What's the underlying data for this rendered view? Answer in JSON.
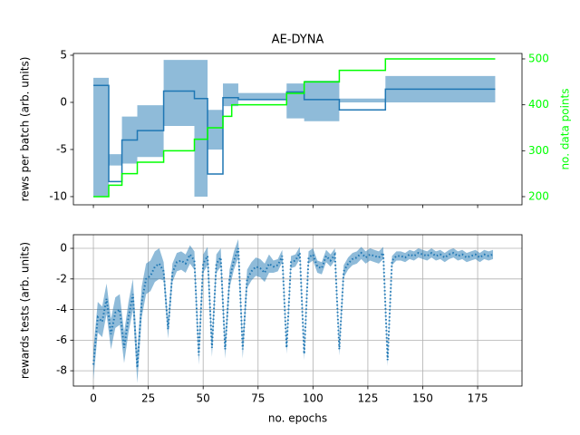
{
  "chart_data": [
    {
      "type": "line",
      "step": true,
      "title": "AE-DYNA",
      "ylabel": "rews per batch (arb. units)",
      "y2label": "no. data points",
      "y2color": "#00ff00",
      "xlim": [
        -9.1,
        195.2
      ],
      "xticks": [
        0,
        25,
        50,
        75,
        100,
        125,
        150,
        175
      ],
      "xtick_labels": false,
      "ylim": [
        -10.87,
        5.19
      ],
      "yticks": [
        -10,
        -5,
        0,
        5
      ],
      "y2lim": [
        182.2,
        511.8
      ],
      "y2ticks": [
        200,
        300,
        400,
        500
      ],
      "grid": false,
      "series": [
        {
          "color": "#1f77b4",
          "x": [
            0,
            7,
            13,
            20,
            32,
            46,
            52,
            59,
            66,
            88,
            96,
            112,
            133,
            183
          ],
          "values": [
            1.8,
            -8.4,
            -4,
            -3,
            1.2,
            0.4,
            -7.6,
            0.5,
            0.3,
            1.1,
            0.3,
            -0.8,
            1.4,
            1.4
          ],
          "lower": [
            1,
            -10,
            -5.5,
            -6.5,
            -5.8,
            -2.5,
            -10,
            -0.8,
            -0.4,
            0.3,
            -1.7,
            -2,
            0,
            0
          ],
          "upper": [
            2.6,
            -6.7,
            -1.5,
            -0.3,
            4.5,
            4.5,
            -5,
            2,
            1,
            2,
            2.3,
            0.4,
            2.8,
            2.8
          ]
        },
        {
          "color": "#00ff00",
          "axis": "y2",
          "x": [
            0,
            7,
            13,
            20,
            32,
            46,
            52,
            59,
            63,
            88,
            96,
            112,
            133,
            183
          ],
          "values": [
            200,
            225,
            250,
            275,
            300,
            325,
            350,
            375,
            400,
            425,
            450,
            475,
            500,
            500
          ]
        }
      ]
    },
    {
      "type": "line",
      "step": false,
      "ylabel": "rewards tests (arb. units)",
      "xlabel": "no. epochs",
      "xlim": [
        -9.1,
        195.2
      ],
      "xticks": [
        0,
        25,
        50,
        75,
        100,
        125,
        150,
        175
      ],
      "xtick_labels": true,
      "ylim": [
        -9.0,
        0.89
      ],
      "yticks": [
        -8,
        -6,
        -4,
        -2,
        0
      ],
      "grid": true,
      "series": [
        {
          "color": "#1f77b4",
          "linestyle": "dotted",
          "x": [
            0,
            2,
            4,
            6,
            8,
            10,
            12,
            14,
            16,
            18,
            20,
            22,
            24,
            26,
            28,
            30,
            32,
            34,
            36,
            38,
            40,
            42,
            44,
            46,
            48,
            50,
            52,
            54,
            56,
            58,
            60,
            62,
            64,
            66,
            68,
            70,
            72,
            74,
            76,
            78,
            80,
            82,
            84,
            86,
            88,
            90,
            92,
            94,
            96,
            98,
            100,
            102,
            104,
            106,
            108,
            110,
            112,
            114,
            116,
            118,
            120,
            122,
            124,
            126,
            128,
            130,
            132,
            134,
            136,
            138,
            140,
            142,
            144,
            146,
            148,
            150,
            152,
            154,
            156,
            158,
            160,
            162,
            164,
            166,
            168,
            170,
            172,
            174,
            176,
            178,
            180,
            182
          ],
          "values": [
            -7.6,
            -4.5,
            -4.8,
            -3.3,
            -5.6,
            -4.2,
            -4.0,
            -6.5,
            -4.5,
            -3.0,
            -7.8,
            -3.5,
            -2.0,
            -1.8,
            -1.2,
            -1.0,
            -1.5,
            -5.3,
            -1.6,
            -0.9,
            -0.8,
            -1.0,
            -0.4,
            -0.8,
            -7.0,
            -1.0,
            -0.5,
            -6.5,
            -1.0,
            -0.6,
            -6.6,
            -2.0,
            -0.8,
            0,
            -6.6,
            -2.0,
            -1.5,
            -1.2,
            -1.3,
            -1.6,
            -1.0,
            -1.2,
            -1.1,
            -0.5,
            -6.5,
            -0.9,
            -0.8,
            -0.3,
            -6.9,
            -0.6,
            -0.4,
            -1.2,
            -1.3,
            -0.5,
            -0.8,
            -0.4,
            -6.6,
            -1.5,
            -1.0,
            -0.7,
            -0.6,
            -0.3,
            -0.6,
            -0.4,
            -0.5,
            -0.6,
            -0.3,
            -7.3,
            -0.8,
            -0.5,
            -0.5,
            -0.6,
            -0.4,
            -0.5,
            -0.3,
            -0.4,
            -0.5,
            -0.3,
            -0.5,
            -0.4,
            -0.6,
            -0.4,
            -0.3,
            -0.5,
            -0.4,
            -0.6,
            -0.5,
            -0.4,
            -0.6,
            -0.4,
            -0.5,
            -0.4
          ],
          "upper": [
            -6.6,
            -3.5,
            -3.8,
            -2.3,
            -4.6,
            -3.2,
            -3.0,
            -5.5,
            -3.5,
            -2.0,
            -6.8,
            -2.5,
            -1.0,
            -0.8,
            -0.2,
            0,
            -0.9,
            -4.7,
            -1.0,
            -0.3,
            -0.2,
            -0.4,
            0.2,
            -0.2,
            -6.4,
            -0.4,
            0.1,
            -5.9,
            -0.4,
            0,
            -6.0,
            -1.4,
            -0.2,
            0.6,
            -6.0,
            -1.4,
            -0.9,
            -0.6,
            -0.7,
            -1.0,
            -0.4,
            -0.8,
            -0.7,
            -0.1,
            -6.1,
            -0.5,
            -0.4,
            0.1,
            -6.5,
            -0.2,
            0,
            -0.8,
            -0.9,
            -0.1,
            -0.4,
            0,
            -6.2,
            -1.1,
            -0.6,
            -0.3,
            -0.2,
            0.1,
            -0.2,
            0,
            -0.1,
            -0.2,
            0.1,
            -6.9,
            -0.5,
            -0.2,
            -0.2,
            -0.3,
            -0.1,
            -0.2,
            0,
            -0.1,
            -0.2,
            0,
            -0.2,
            -0.1,
            -0.3,
            -0.1,
            0,
            -0.2,
            -0.1,
            -0.3,
            -0.2,
            -0.1,
            -0.3,
            -0.1,
            -0.2,
            -0.1
          ],
          "lower": [
            -8.6,
            -5.5,
            -5.8,
            -4.3,
            -6.6,
            -5.2,
            -5.0,
            -7.5,
            -5.5,
            -4.0,
            -8.8,
            -4.5,
            -3.0,
            -2.8,
            -2.2,
            -2.0,
            -2.1,
            -5.9,
            -2.2,
            -1.5,
            -1.4,
            -1.6,
            -1.0,
            -1.4,
            -7.6,
            -1.6,
            -1.1,
            -7.1,
            -1.6,
            -1.2,
            -7.2,
            -2.6,
            -1.4,
            -0.6,
            -7.2,
            -2.6,
            -2.1,
            -1.8,
            -1.9,
            -2.2,
            -1.6,
            -1.6,
            -1.5,
            -0.9,
            -6.9,
            -1.3,
            -1.2,
            -0.7,
            -7.3,
            -1.0,
            -0.8,
            -1.6,
            -1.7,
            -0.9,
            -1.2,
            -0.8,
            -7.0,
            -1.9,
            -1.4,
            -1.1,
            -1.0,
            -0.7,
            -1.0,
            -0.8,
            -0.9,
            -1.0,
            -0.7,
            -7.7,
            -1.1,
            -0.8,
            -0.8,
            -0.9,
            -0.7,
            -0.8,
            -0.6,
            -0.7,
            -0.8,
            -0.6,
            -0.8,
            -0.7,
            -0.9,
            -0.7,
            -0.6,
            -0.8,
            -0.7,
            -0.9,
            -0.8,
            -0.7,
            -0.9,
            -0.7,
            -0.8,
            -0.7
          ]
        }
      ]
    }
  ]
}
